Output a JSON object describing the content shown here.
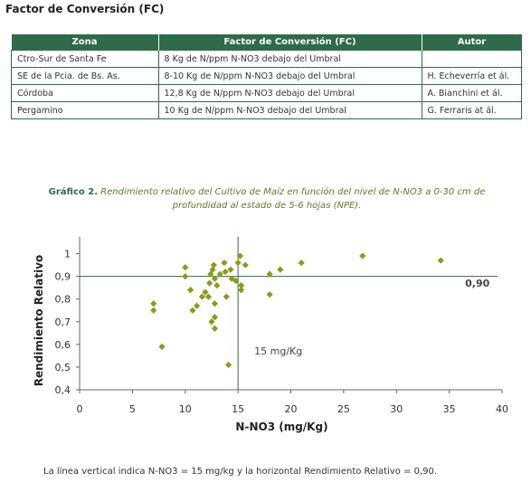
{
  "section_title": "Factor de Conversión (FC)",
  "table": {
    "headers": [
      "Zona",
      "Factor de Conversión (FC)",
      "Autor"
    ],
    "rows": [
      [
        "Ctro-Sur de Santa Fe",
        "8 Kg de N/ppm N-NO3 debajo del Umbral",
        ""
      ],
      [
        "SE de la Pcia. de Bs. As.",
        "8-10 Kg de N/ppm N-NO3 debajo del Umbral",
        "H. Echeverría et ál."
      ],
      [
        "Córdoba",
        "12,8 Kg de N/ppm N-NO3 debajo del Umbral",
        "A. Bianchini et ál."
      ],
      [
        "Pergamino",
        "10 Kg de N/ppm N-NO3 debajo del Umbral",
        "G. Ferraris at ál."
      ]
    ]
  },
  "chart_caption": {
    "lead": "Gráfico 2.",
    "text": "Rendimiento relativo del Cultivo de Maíz en función del nivel de N-NO3 a 0-30 cm de profundidad al estado de 5-6 hojas (NPE)."
  },
  "footnote": "La línea vertical indica N-NO3 = 15 mg/kg y la horizontal Rendimiento Relativo = 0,90.",
  "chart_data": {
    "type": "scatter",
    "xlabel": "N-NO3 (mg/Kg)",
    "ylabel": "Rendimiento Relativo",
    "xlim": [
      0,
      40
    ],
    "ylim": [
      0.4,
      1.05
    ],
    "x_ticks": [
      "0",
      "5",
      "10",
      "15",
      "20",
      "25",
      "30",
      "35",
      "40"
    ],
    "y_ticks": [
      "0,4",
      "0,5",
      "0,6",
      "0,7",
      "0,8",
      "0,9",
      "1"
    ],
    "reference_lines": {
      "vertical": {
        "x": 15,
        "label": "15 mg/Kg"
      },
      "horizontal": {
        "y": 0.9,
        "label": "0,90"
      }
    },
    "point_color": "#8a9a1c",
    "line_color": "#2f6a49",
    "points": [
      [
        7.0,
        0.78
      ],
      [
        7.0,
        0.75
      ],
      [
        7.8,
        0.59
      ],
      [
        10.0,
        0.94
      ],
      [
        10.0,
        0.9
      ],
      [
        10.5,
        0.84
      ],
      [
        10.7,
        0.75
      ],
      [
        11.1,
        0.77
      ],
      [
        11.6,
        0.81
      ],
      [
        11.9,
        0.83
      ],
      [
        12.2,
        0.81
      ],
      [
        12.3,
        0.87
      ],
      [
        12.4,
        0.91
      ],
      [
        12.5,
        0.7
      ],
      [
        12.6,
        0.93
      ],
      [
        12.7,
        0.95
      ],
      [
        12.8,
        0.89
      ],
      [
        12.8,
        0.78
      ],
      [
        12.8,
        0.72
      ],
      [
        12.8,
        0.67
      ],
      [
        13.0,
        0.86
      ],
      [
        13.3,
        0.91
      ],
      [
        13.7,
        0.96
      ],
      [
        13.8,
        0.92
      ],
      [
        13.9,
        0.81
      ],
      [
        14.1,
        0.51
      ],
      [
        14.3,
        0.93
      ],
      [
        14.4,
        0.89
      ],
      [
        14.8,
        0.88
      ],
      [
        15.0,
        0.96
      ],
      [
        15.2,
        0.99
      ],
      [
        15.3,
        0.86
      ],
      [
        15.3,
        0.84
      ],
      [
        15.7,
        0.95
      ],
      [
        18.0,
        0.91
      ],
      [
        18.0,
        0.82
      ],
      [
        19.0,
        0.93
      ],
      [
        21.0,
        0.96
      ],
      [
        26.8,
        0.99
      ],
      [
        34.2,
        0.97
      ]
    ]
  }
}
